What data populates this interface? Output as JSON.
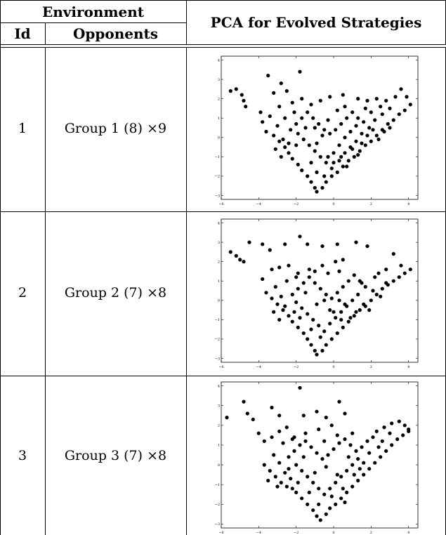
{
  "table": {
    "header": {
      "group": "Environment",
      "id": "Id",
      "opponents": "Opponents",
      "pca": "PCA for Evolved Strategies"
    },
    "rows": [
      {
        "id": "1",
        "opponents": "Group 1 (8) ×9"
      },
      {
        "id": "2",
        "opponents": "Group 2 (7) ×8"
      },
      {
        "id": "3",
        "opponents": "Group 3 (7) ×8"
      }
    ]
  },
  "chart_data": [
    {
      "type": "scatter",
      "xlim": [
        -6,
        4.5
      ],
      "ylim": [
        -3.2,
        4.2
      ],
      "xticks": [
        -6,
        -4,
        -2,
        0,
        2,
        4
      ],
      "yticks": [
        -3,
        -2,
        -1,
        0,
        1,
        2,
        3,
        4
      ],
      "marker_color": "#000000",
      "points": [
        [
          -5.2,
          2.5
        ],
        [
          -5.5,
          2.4
        ],
        [
          -4.9,
          2.2
        ],
        [
          -4.8,
          1.9
        ],
        [
          -4.7,
          1.6
        ],
        [
          -3.5,
          3.2
        ],
        [
          -1.8,
          3.4
        ],
        [
          -2.8,
          2.8
        ],
        [
          -3.2,
          2.3
        ],
        [
          -2.5,
          2.4
        ],
        [
          -3.9,
          1.3
        ],
        [
          -3.8,
          0.8
        ],
        [
          -3.4,
          1.1
        ],
        [
          -2.9,
          1.6
        ],
        [
          -2.2,
          1.8
        ],
        [
          -1.7,
          2.0
        ],
        [
          -1.2,
          1.7
        ],
        [
          -0.7,
          1.9
        ],
        [
          -0.2,
          2.1
        ],
        [
          0.5,
          2.2
        ],
        [
          1.3,
          2.0
        ],
        [
          1.8,
          1.9
        ],
        [
          2.3,
          2.0
        ],
        [
          2.8,
          1.9
        ],
        [
          3.3,
          2.1
        ],
        [
          3.6,
          2.5
        ],
        [
          3.9,
          2.1
        ],
        [
          -3.6,
          0.3
        ],
        [
          -3.2,
          0.1
        ],
        [
          -2.9,
          -0.2
        ],
        [
          -2.6,
          -0.5
        ],
        [
          -2.4,
          -0.8
        ],
        [
          -2.2,
          -1.1
        ],
        [
          -1.9,
          -1.4
        ],
        [
          -1.7,
          -1.7
        ],
        [
          -1.4,
          -2.0
        ],
        [
          -1.2,
          -2.3
        ],
        [
          -1.0,
          -2.6
        ],
        [
          -0.9,
          -2.8
        ],
        [
          -0.6,
          -2.6
        ],
        [
          -0.4,
          -2.3
        ],
        [
          -0.1,
          -2.0
        ],
        [
          0.2,
          -1.8
        ],
        [
          0.5,
          -1.5
        ],
        [
          0.8,
          -1.2
        ],
        [
          1.1,
          -1.0
        ],
        [
          1.4,
          -0.7
        ],
        [
          1.7,
          -0.4
        ],
        [
          2.0,
          -0.2
        ],
        [
          2.3,
          0.1
        ],
        [
          2.6,
          0.4
        ],
        [
          2.9,
          0.7
        ],
        [
          3.2,
          0.9
        ],
        [
          3.5,
          1.2
        ],
        [
          3.8,
          1.4
        ],
        [
          4.1,
          1.7
        ],
        [
          -2.3,
          0.4
        ],
        [
          -2.0,
          0.7
        ],
        [
          -1.7,
          1.0
        ],
        [
          -1.4,
          1.3
        ],
        [
          -1.1,
          1.0
        ],
        [
          -0.8,
          0.7
        ],
        [
          -0.5,
          0.4
        ],
        [
          -0.2,
          0.2
        ],
        [
          0.1,
          0.4
        ],
        [
          0.4,
          0.7
        ],
        [
          0.7,
          1.0
        ],
        [
          1.0,
          1.3
        ],
        [
          1.3,
          1.0
        ],
        [
          1.6,
          0.8
        ],
        [
          -1.9,
          0.2
        ],
        [
          -1.6,
          -0.1
        ],
        [
          -1.3,
          -0.4
        ],
        [
          -1.0,
          -0.7
        ],
        [
          -0.7,
          -1.0
        ],
        [
          -0.4,
          -1.3
        ],
        [
          -0.1,
          -1.6
        ],
        [
          0.3,
          -1.2
        ],
        [
          0.6,
          -0.8
        ],
        [
          0.9,
          -0.5
        ],
        [
          1.2,
          -0.2
        ],
        [
          1.5,
          0.2
        ],
        [
          1.9,
          0.5
        ],
        [
          2.2,
          0.9
        ],
        [
          2.6,
          1.2
        ],
        [
          3.0,
          1.5
        ],
        [
          -3.0,
          0.6
        ],
        [
          -2.7,
          -0.1
        ],
        [
          -2.4,
          -0.3
        ],
        [
          -3.1,
          -0.6
        ],
        [
          -2.8,
          -1.0
        ],
        [
          -2.0,
          -0.4
        ],
        [
          -1.5,
          0.5
        ],
        [
          -0.9,
          -0.3
        ],
        [
          -0.6,
          0.1
        ],
        [
          0.0,
          -0.8
        ],
        [
          0.3,
          -0.4
        ],
        [
          0.6,
          0.0
        ],
        [
          0.9,
          0.3
        ],
        [
          1.2,
          0.6
        ],
        [
          1.5,
          -0.3
        ],
        [
          1.8,
          0.1
        ],
        [
          2.1,
          0.4
        ],
        [
          2.4,
          -0.1
        ],
        [
          2.7,
          0.3
        ],
        [
          3.0,
          0.5
        ],
        [
          -1.2,
          -1.3
        ],
        [
          -0.9,
          -1.8
        ],
        [
          -0.3,
          -1.0
        ],
        [
          0.4,
          -1.0
        ],
        [
          1.0,
          -0.6
        ],
        [
          1.3,
          -0.9
        ],
        [
          -0.5,
          -2.0
        ],
        [
          0.0,
          -1.3
        ],
        [
          0.7,
          -1.5
        ],
        [
          2.0,
          1.3
        ],
        [
          2.5,
          1.6
        ],
        [
          1.7,
          1.5
        ],
        [
          -1.0,
          0.5
        ],
        [
          -0.3,
          0.9
        ],
        [
          0.2,
          1.4
        ],
        [
          0.6,
          1.6
        ],
        [
          -2.6,
          1.0
        ],
        [
          -2.1,
          1.3
        ]
      ]
    },
    {
      "type": "scatter",
      "xlim": [
        -6,
        4.5
      ],
      "ylim": [
        -3.2,
        4.2
      ],
      "xticks": [
        -6,
        -4,
        -2,
        0,
        2,
        4
      ],
      "yticks": [
        -3,
        -2,
        -1,
        0,
        1,
        2,
        3,
        4
      ],
      "marker_color": "#000000",
      "points": [
        [
          -5.5,
          2.5
        ],
        [
          -5.2,
          2.3
        ],
        [
          -5.0,
          2.1
        ],
        [
          -4.8,
          2.0
        ],
        [
          -4.5,
          3.0
        ],
        [
          -3.8,
          2.9
        ],
        [
          -3.4,
          2.6
        ],
        [
          -2.6,
          2.9
        ],
        [
          -1.8,
          3.3
        ],
        [
          -1.4,
          2.9
        ],
        [
          -0.6,
          2.8
        ],
        [
          0.2,
          2.9
        ],
        [
          1.2,
          3.0
        ],
        [
          1.8,
          2.8
        ],
        [
          2.4,
          1.4
        ],
        [
          2.8,
          1.6
        ],
        [
          3.2,
          2.4
        ],
        [
          3.6,
          1.8
        ],
        [
          -3.8,
          1.1
        ],
        [
          -3.3,
          1.6
        ],
        [
          -2.9,
          1.7
        ],
        [
          -2.4,
          1.8
        ],
        [
          -1.9,
          1.4
        ],
        [
          -1.3,
          1.6
        ],
        [
          -0.6,
          1.8
        ],
        [
          0.1,
          2.0
        ],
        [
          0.5,
          2.1
        ],
        [
          -3.6,
          0.4
        ],
        [
          -3.3,
          0.1
        ],
        [
          -3.0,
          -0.2
        ],
        [
          -2.7,
          -0.5
        ],
        [
          -2.4,
          -0.8
        ],
        [
          -2.2,
          -1.1
        ],
        [
          -1.9,
          -1.4
        ],
        [
          -1.6,
          -1.7
        ],
        [
          -1.4,
          -2.0
        ],
        [
          -1.2,
          -2.3
        ],
        [
          -1.0,
          -2.6
        ],
        [
          -0.9,
          -2.8
        ],
        [
          -0.6,
          -2.6
        ],
        [
          -0.4,
          -2.3
        ],
        [
          -0.1,
          -2.0
        ],
        [
          0.2,
          -1.7
        ],
        [
          0.5,
          -1.4
        ],
        [
          0.8,
          -1.1
        ],
        [
          1.1,
          -0.8
        ],
        [
          1.4,
          -0.5
        ],
        [
          1.7,
          -0.3
        ],
        [
          2.0,
          0.0
        ],
        [
          2.3,
          0.3
        ],
        [
          2.6,
          0.6
        ],
        [
          2.9,
          0.8
        ],
        [
          3.2,
          1.0
        ],
        [
          3.5,
          1.2
        ],
        [
          3.8,
          1.4
        ],
        [
          4.1,
          1.6
        ],
        [
          -2.2,
          0.3
        ],
        [
          -1.9,
          0.6
        ],
        [
          -1.6,
          0.9
        ],
        [
          -1.3,
          1.2
        ],
        [
          -1.0,
          0.9
        ],
        [
          -0.7,
          0.6
        ],
        [
          -0.4,
          0.3
        ],
        [
          -0.1,
          0.1
        ],
        [
          0.2,
          0.4
        ],
        [
          0.5,
          0.7
        ],
        [
          0.8,
          1.0
        ],
        [
          1.1,
          1.3
        ],
        [
          1.4,
          1.0
        ],
        [
          1.7,
          0.7
        ],
        [
          -2.0,
          -0.1
        ],
        [
          -1.7,
          -0.4
        ],
        [
          -1.4,
          -0.7
        ],
        [
          -1.1,
          -1.0
        ],
        [
          -0.8,
          -1.3
        ],
        [
          -0.5,
          -1.6
        ],
        [
          -0.2,
          -1.2
        ],
        [
          0.1,
          -0.9
        ],
        [
          0.4,
          -0.6
        ],
        [
          0.7,
          -0.3
        ],
        [
          1.0,
          0.0
        ],
        [
          1.3,
          0.3
        ],
        [
          1.6,
          -0.2
        ],
        [
          1.9,
          -0.5
        ],
        [
          0.9,
          -0.9
        ],
        [
          0.6,
          -0.2
        ],
        [
          0.3,
          0.0
        ],
        [
          -3.1,
          0.7
        ],
        [
          -2.8,
          0.2
        ],
        [
          -2.6,
          -0.3
        ],
        [
          -3.2,
          -0.6
        ],
        [
          -2.9,
          -1.0
        ],
        [
          -2.1,
          -0.6
        ],
        [
          -1.5,
          0.4
        ],
        [
          -0.9,
          -0.2
        ],
        [
          -0.5,
          0.0
        ],
        [
          0.0,
          -0.6
        ],
        [
          0.4,
          -1.0
        ],
        [
          1.2,
          -0.6
        ],
        [
          2.1,
          0.5
        ],
        [
          2.5,
          0.2
        ],
        [
          2.8,
          0.9
        ],
        [
          -1.2,
          -1.5
        ],
        [
          -0.7,
          -1.9
        ],
        [
          -0.2,
          -0.5
        ],
        [
          -1.8,
          -0.9
        ],
        [
          2.2,
          1.2
        ],
        [
          1.5,
          0.9
        ],
        [
          -2.5,
          1.0
        ],
        [
          -2.0,
          1.2
        ],
        [
          -0.3,
          1.4
        ],
        [
          0.3,
          1.5
        ],
        [
          -1.0,
          1.5
        ]
      ]
    },
    {
      "type": "scatter",
      "xlim": [
        -6,
        4.5
      ],
      "ylim": [
        -3.2,
        4.2
      ],
      "xticks": [
        -6,
        -4,
        -2,
        0,
        2,
        4
      ],
      "yticks": [
        -3,
        -2,
        -1,
        0,
        1,
        2,
        3,
        4
      ],
      "marker_color": "#000000",
      "points": [
        [
          -5.7,
          2.4
        ],
        [
          -4.8,
          3.2
        ],
        [
          -4.6,
          2.6
        ],
        [
          -4.3,
          2.3
        ],
        [
          -4.0,
          1.6
        ],
        [
          -3.3,
          2.9
        ],
        [
          -2.9,
          2.5
        ],
        [
          -1.8,
          3.9
        ],
        [
          -1.6,
          2.5
        ],
        [
          -0.9,
          2.7
        ],
        [
          -0.4,
          2.4
        ],
        [
          0.3,
          3.2
        ],
        [
          0.6,
          2.6
        ],
        [
          -3.7,
          1.2
        ],
        [
          -3.3,
          1.4
        ],
        [
          -2.9,
          1.7
        ],
        [
          -2.5,
          1.9
        ],
        [
          -2.1,
          1.4
        ],
        [
          -1.5,
          1.6
        ],
        [
          -0.8,
          1.8
        ],
        [
          -0.1,
          2.0
        ],
        [
          2.3,
          1.7
        ],
        [
          2.7,
          1.9
        ],
        [
          3.1,
          2.1
        ],
        [
          3.5,
          2.2
        ],
        [
          3.8,
          2.0
        ],
        [
          4.0,
          1.8
        ],
        [
          -3.7,
          0.0
        ],
        [
          -3.4,
          -0.3
        ],
        [
          -3.1,
          -0.6
        ],
        [
          -2.8,
          -0.9
        ],
        [
          -2.5,
          -1.1
        ],
        [
          -2.2,
          -1.2
        ],
        [
          -2.0,
          -1.4
        ],
        [
          -1.7,
          -1.7
        ],
        [
          -1.4,
          -2.0
        ],
        [
          -1.1,
          -2.3
        ],
        [
          -0.9,
          -2.6
        ],
        [
          -0.7,
          -2.8
        ],
        [
          -0.4,
          -2.5
        ],
        [
          -0.2,
          -2.2
        ],
        [
          0.1,
          -2.0
        ],
        [
          0.4,
          -1.7
        ],
        [
          0.7,
          -1.4
        ],
        [
          1.0,
          -1.1
        ],
        [
          1.3,
          -0.8
        ],
        [
          1.6,
          -0.5
        ],
        [
          1.9,
          -0.2
        ],
        [
          2.2,
          0.1
        ],
        [
          2.5,
          0.4
        ],
        [
          2.8,
          0.7
        ],
        [
          3.1,
          1.0
        ],
        [
          3.4,
          1.3
        ],
        [
          3.7,
          1.5
        ],
        [
          4.0,
          1.7
        ],
        [
          -2.4,
          0.4
        ],
        [
          -2.1,
          0.7
        ],
        [
          -1.8,
          1.0
        ],
        [
          -1.5,
          1.2
        ],
        [
          -1.2,
          0.9
        ],
        [
          -0.9,
          0.6
        ],
        [
          -0.6,
          0.3
        ],
        [
          -0.3,
          0.5
        ],
        [
          0.0,
          0.8
        ],
        [
          0.3,
          1.1
        ],
        [
          0.6,
          1.3
        ],
        [
          0.9,
          1.0
        ],
        [
          1.2,
          0.7
        ],
        [
          1.5,
          0.9
        ],
        [
          1.8,
          1.2
        ],
        [
          2.1,
          1.4
        ],
        [
          -2.0,
          0.0
        ],
        [
          -1.7,
          -0.3
        ],
        [
          -1.4,
          -0.6
        ],
        [
          -1.1,
          -0.9
        ],
        [
          -0.8,
          -1.2
        ],
        [
          -0.5,
          -1.5
        ],
        [
          -0.2,
          -1.2
        ],
        [
          0.1,
          -0.9
        ],
        [
          0.4,
          -0.6
        ],
        [
          0.7,
          -0.3
        ],
        [
          1.0,
          0.0
        ],
        [
          1.3,
          0.3
        ],
        [
          1.6,
          0.1
        ],
        [
          -3.2,
          0.5
        ],
        [
          -2.9,
          0.1
        ],
        [
          -2.6,
          -0.4
        ],
        [
          -3.5,
          -0.8
        ],
        [
          -3.0,
          -1.1
        ],
        [
          -2.3,
          -0.7
        ],
        [
          -1.6,
          0.4
        ],
        [
          -1.0,
          -0.4
        ],
        [
          -0.4,
          -0.1
        ],
        [
          0.2,
          -0.5
        ],
        [
          0.5,
          -1.2
        ],
        [
          0.8,
          0.4
        ],
        [
          1.1,
          -0.5
        ],
        [
          1.4,
          -0.2
        ],
        [
          1.9,
          0.6
        ],
        [
          2.4,
          0.9
        ],
        [
          2.6,
          1.2
        ],
        [
          3.0,
          1.6
        ],
        [
          -1.3,
          -1.4
        ],
        [
          -0.8,
          -2.0
        ],
        [
          -0.1,
          -1.6
        ],
        [
          0.6,
          -1.9
        ],
        [
          -2.7,
          1.1
        ],
        [
          -2.2,
          1.3
        ],
        [
          -0.5,
          1.2
        ],
        [
          0.2,
          1.5
        ],
        [
          1.0,
          1.6
        ],
        [
          -1.9,
          -0.9
        ],
        [
          -2.4,
          -0.2
        ]
      ]
    }
  ]
}
